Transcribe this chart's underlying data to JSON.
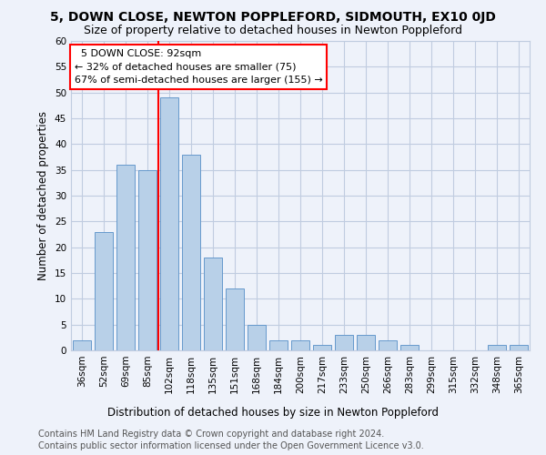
{
  "title": "5, DOWN CLOSE, NEWTON POPPLEFORD, SIDMOUTH, EX10 0JD",
  "subtitle": "Size of property relative to detached houses in Newton Poppleford",
  "xlabel": "Distribution of detached houses by size in Newton Poppleford",
  "ylabel": "Number of detached properties",
  "categories": [
    "36sqm",
    "52sqm",
    "69sqm",
    "85sqm",
    "102sqm",
    "118sqm",
    "135sqm",
    "151sqm",
    "168sqm",
    "184sqm",
    "200sqm",
    "217sqm",
    "233sqm",
    "250sqm",
    "266sqm",
    "283sqm",
    "299sqm",
    "315sqm",
    "332sqm",
    "348sqm",
    "365sqm"
  ],
  "values": [
    2,
    23,
    36,
    35,
    49,
    38,
    18,
    12,
    5,
    2,
    2,
    1,
    3,
    3,
    2,
    1,
    0,
    0,
    0,
    1,
    1
  ],
  "bar_color": "#b8d0e8",
  "bar_edge_color": "#6699cc",
  "ylim": [
    0,
    60
  ],
  "yticks": [
    0,
    5,
    10,
    15,
    20,
    25,
    30,
    35,
    40,
    45,
    50,
    55,
    60
  ],
  "property_label": "5 DOWN CLOSE: 92sqm",
  "pct_smaller": 32,
  "n_smaller": 75,
  "pct_larger_semi": 67,
  "n_larger_semi": 155,
  "vline_x_index": 3.5,
  "footer1": "Contains HM Land Registry data © Crown copyright and database right 2024.",
  "footer2": "Contains public sector information licensed under the Open Government Licence v3.0.",
  "background_color": "#eef2fa",
  "plot_bg_color": "#eef2fa",
  "grid_color": "#c0cce0",
  "title_fontsize": 10,
  "subtitle_fontsize": 9,
  "axis_label_fontsize": 8.5,
  "tick_fontsize": 7.5,
  "footer_fontsize": 7,
  "annot_fontsize": 8
}
